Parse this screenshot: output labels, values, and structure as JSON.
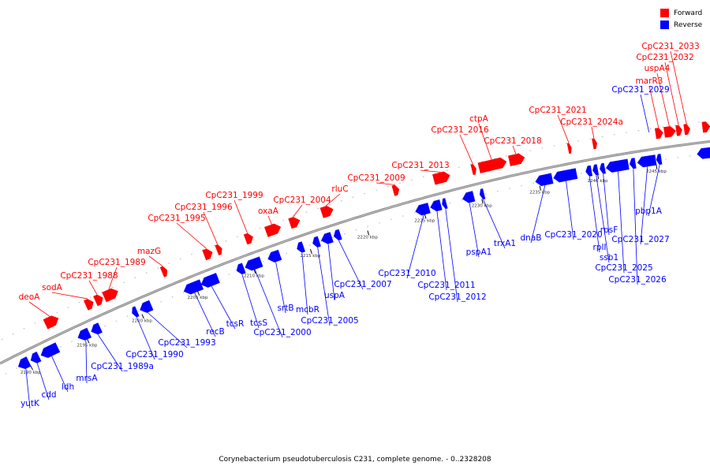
{
  "legend": {
    "forward_label": "Forward",
    "reverse_label": "Reverse",
    "forward_color": "#ff0000",
    "reverse_color": "#0000ff"
  },
  "caption": "Corynebacterium pseudotuberculosis C231, complete genome. - 0..2328208",
  "axis_ticks": [
    "2190 kbp",
    "2195 kbp",
    "2200 kbp",
    "2205 kbp",
    "2210 kbp",
    "2215 kbp",
    "2220 kbp",
    "2225 kbp",
    "2230 kbp",
    "2235 kbp",
    "2240 kbp",
    "2245 kbp"
  ],
  "forward_genes": [
    "deoA",
    "sodA",
    "CpC231_1988",
    "CpC231_1989",
    "mazG",
    "CpC231_1995",
    "CpC231_1996",
    "CpC231_1999",
    "oxaA",
    "CpC231_2004",
    "rluC",
    "CpC231_2009",
    "CpC231_2013",
    "CpC231_2016",
    "ctpA",
    "CpC231_2018",
    "CpC231_2021",
    "CpC231_2024a",
    "marR3",
    "uspA4",
    "CpC231_2032",
    "CpC231_2033"
  ],
  "reverse_genes": [
    "yutK",
    "cdd",
    "ldh",
    "mrsA",
    "CpC231_1989a",
    "CpC231_1990",
    "CpC231_1993",
    "recB",
    "tcsR",
    "tcsS",
    "CpC231_2000",
    "srtB",
    "mcbR",
    "CpC231_2005",
    "uspA",
    "CpC231_2007",
    "CpC231_2010",
    "CpC231_2011",
    "CpC231_2012",
    "pspA1",
    "trxA1",
    "dnaB",
    "CpC231_2020",
    "rplI",
    "ssb1",
    "rpsF",
    "CpC231_2025",
    "CpC231_2026",
    "CpC231_2027",
    "pbp1A",
    "CpC231_2029"
  ]
}
